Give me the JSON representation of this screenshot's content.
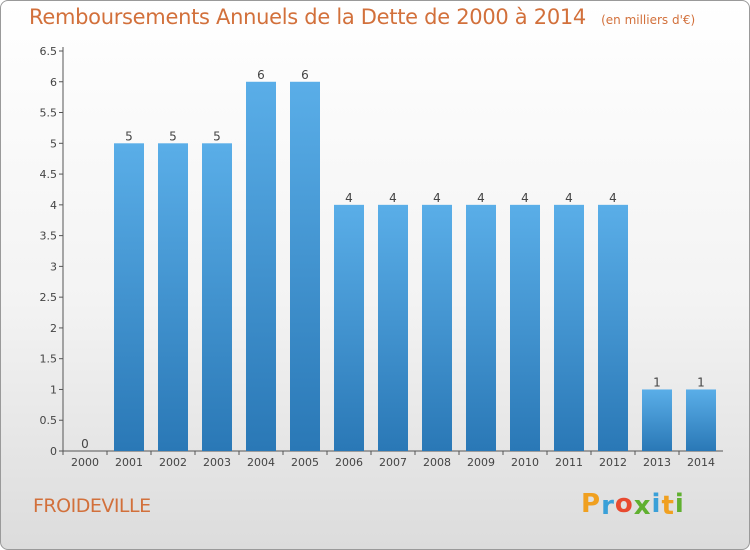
{
  "chart_data": {
    "type": "bar",
    "title": "Remboursements Annuels de la Dette de 2000 à 2014",
    "unit_note": "(en milliers d'€)",
    "categories": [
      "2000",
      "2001",
      "2002",
      "2003",
      "2004",
      "2005",
      "2006",
      "2007",
      "2008",
      "2009",
      "2010",
      "2011",
      "2012",
      "2013",
      "2014"
    ],
    "values": [
      0,
      5,
      5,
      5,
      6,
      6,
      4,
      4,
      4,
      4,
      4,
      4,
      4,
      1,
      1
    ],
    "data_labels": [
      "0",
      "5",
      "5",
      "5",
      "6",
      "6",
      "4",
      "4",
      "4",
      "4",
      "4",
      "4",
      "4",
      "1",
      "1"
    ],
    "y_ticks": [
      "0",
      "0.5",
      "1",
      "1.5",
      "2",
      "2.5",
      "3",
      "3.5",
      "4",
      "4.5",
      "5",
      "5.5",
      "6",
      "6.5"
    ],
    "ylim": [
      0,
      6.5
    ],
    "xlabel": "",
    "ylabel": "",
    "grid": false,
    "bar_color_top": "#5aaee8",
    "bar_color_bottom": "#2a78b6"
  },
  "footer": {
    "commune": "FROIDEVILLE",
    "logo_letters": [
      "P",
      "r",
      "o",
      "x",
      "i",
      "t",
      "i"
    ],
    "logo_colors": [
      "#f0a020",
      "#3aa0d8",
      "#e84a30",
      "#60b030",
      "#3aa0d8",
      "#f0a020",
      "#60b030"
    ]
  },
  "label_color": "#d2703b"
}
